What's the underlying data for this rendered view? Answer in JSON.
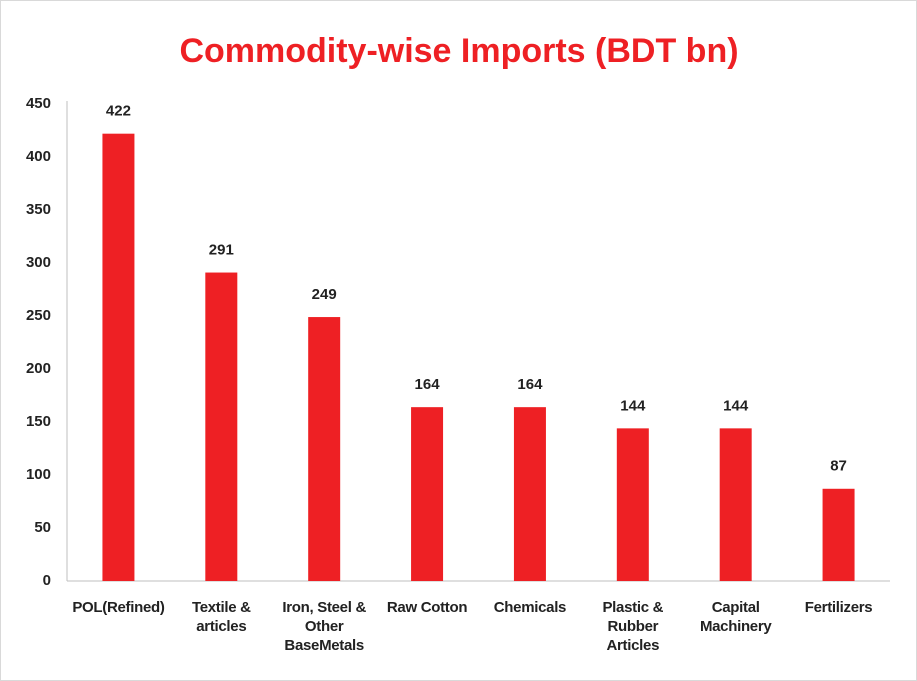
{
  "chart_data": {
    "type": "bar",
    "title": "Commodity-wise Imports (BDT bn)",
    "categories": [
      "POL(Refined)",
      "Textile & articles",
      "Iron, Steel & Other BaseMetals",
      "Raw Cotton",
      "Chemicals",
      "Plastic & Rubber Articles",
      "Capital Machinery",
      "Fertilizers"
    ],
    "values": [
      422,
      291,
      249,
      164,
      164,
      144,
      144,
      87
    ],
    "color": "#ee2024",
    "ylim": [
      0,
      450
    ],
    "yticks": [
      0,
      50,
      100,
      150,
      200,
      250,
      300,
      350,
      400,
      450
    ],
    "grid": false
  }
}
